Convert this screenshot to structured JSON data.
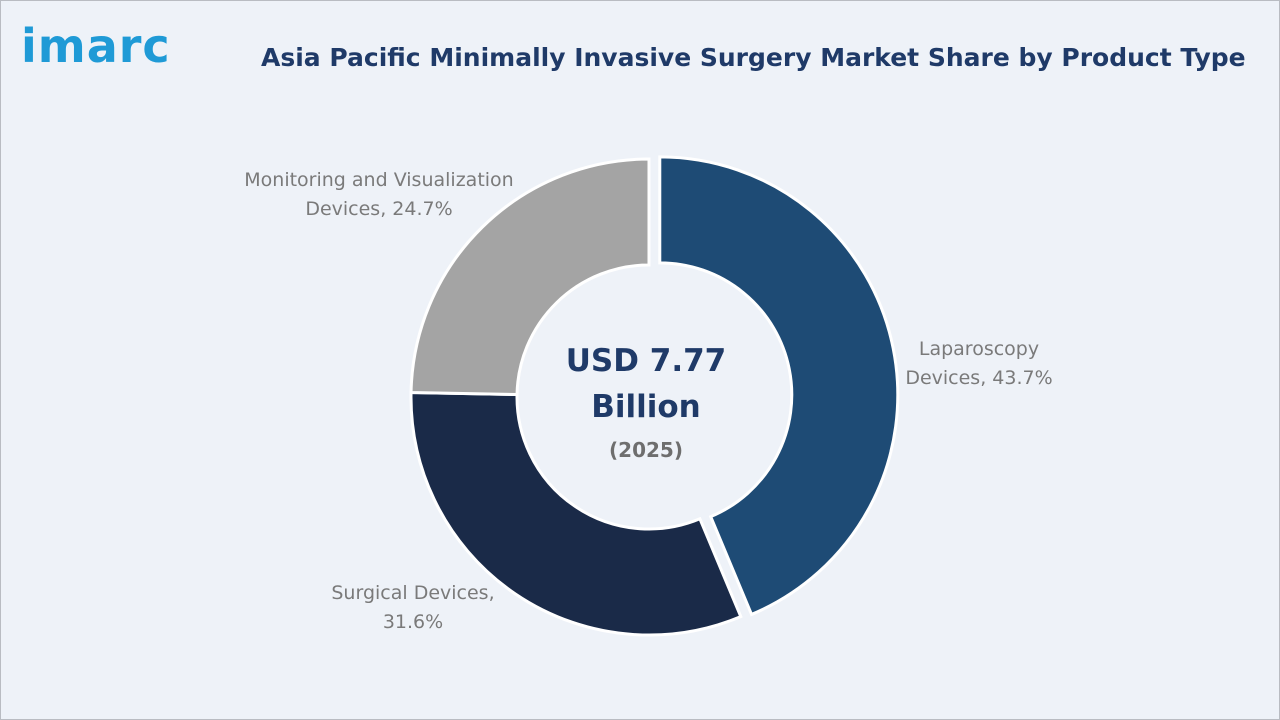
{
  "logo": {
    "text": "imarc"
  },
  "chart_data": {
    "type": "pie",
    "title": "Asia Pacific Minimally Invasive Surgery Market Share by Product Type",
    "center": {
      "line1": "USD 7.77",
      "line2": "Billion",
      "line3": "(2025)"
    },
    "slices": [
      {
        "label": "Laparoscopy Devices",
        "value": 43.7,
        "label_text": [
          "Laparoscopy",
          "Devices, 43.7%"
        ],
        "color": "#1e4b75"
      },
      {
        "label": "Surgical Devices",
        "value": 31.6,
        "label_text": [
          "Surgical Devices,",
          "31.6%"
        ],
        "color": "#1a2a48"
      },
      {
        "label": "Monitoring and Visualization Devices",
        "value": 24.7,
        "label_text": [
          "Monitoring and Visualization",
          "Devices, 24.7%"
        ],
        "color": "#a4a4a4"
      }
    ],
    "legend": "none"
  }
}
